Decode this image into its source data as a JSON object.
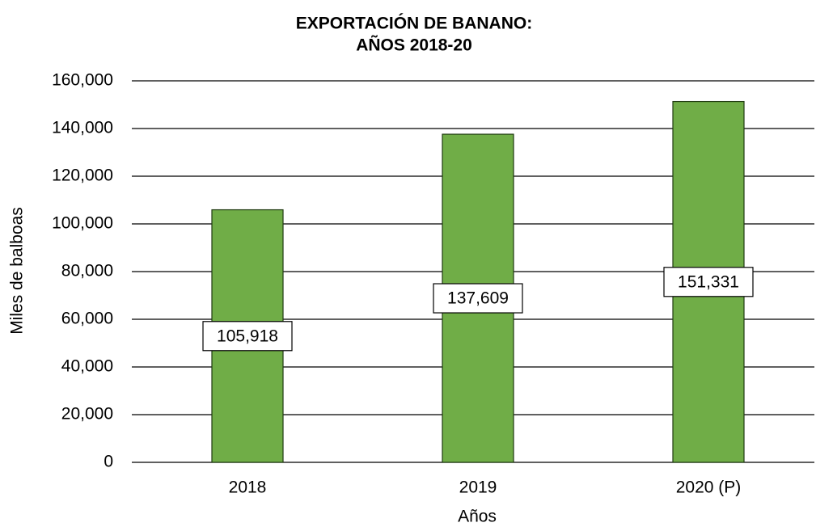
{
  "chart_data": {
    "type": "bar",
    "title": [
      "EXPORTACIÓN DE BANANO:",
      "AÑOS 2018-20"
    ],
    "x_label": "Años",
    "y_label": "Miles de balboas",
    "categories": [
      "2018",
      "2019",
      "2020 (P)"
    ],
    "values": [
      105918,
      137609,
      151331
    ],
    "value_labels": [
      "105,918",
      "137,609",
      "151,331"
    ],
    "color": "#70ad47",
    "ylim": [
      0,
      160000
    ],
    "yticks": [
      0,
      {
        "value": 20000,
        "label": "20,000"
      },
      {
        "value": 40000,
        "label": "40,000"
      },
      {
        "value": 60000,
        "label": "60,000"
      },
      {
        "value": 80000,
        "label": "80,000"
      },
      {
        "value": 100000,
        "label": "100,000"
      },
      {
        "value": 120000,
        "label": "120,000"
      },
      {
        "value": 140000,
        "label": "140,000"
      },
      {
        "value": 160000,
        "label": "160,000"
      }
    ],
    "grid": true
  }
}
